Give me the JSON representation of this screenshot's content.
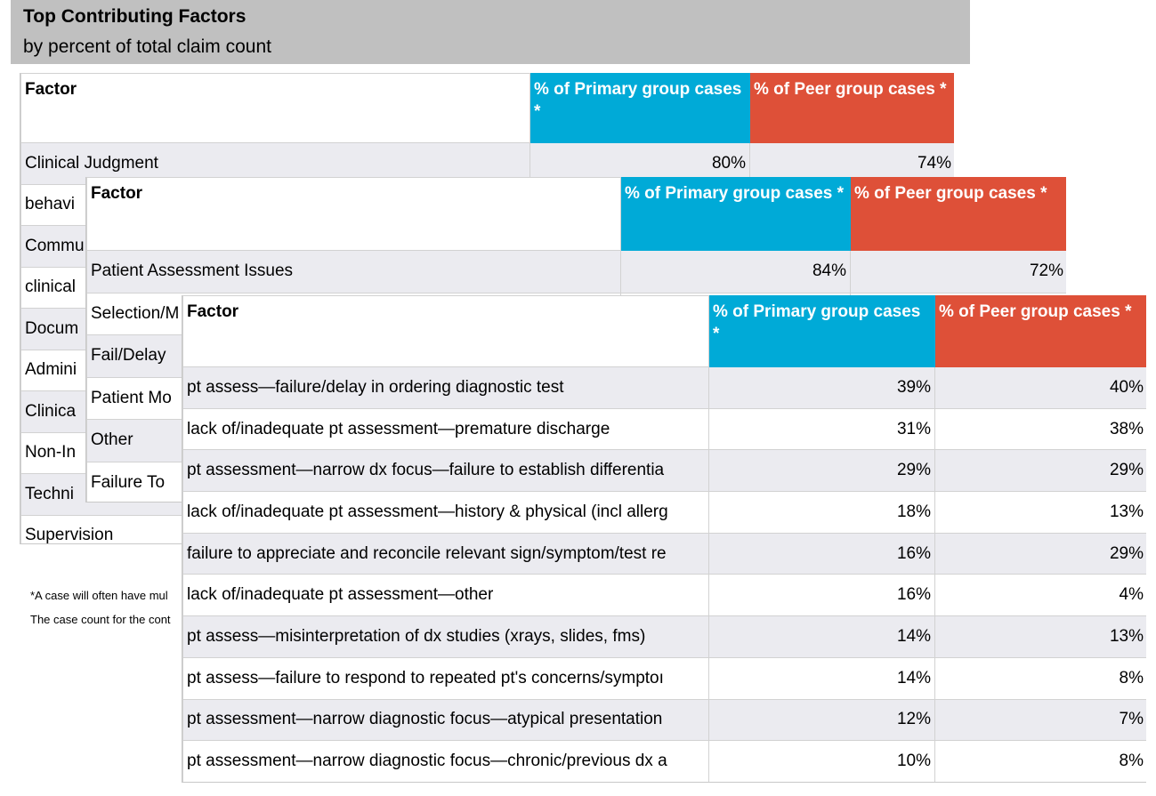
{
  "header": {
    "title": "Top Contributing Factors",
    "subtitle": "by percent of total claim count"
  },
  "columns": {
    "factor": "Factor",
    "primary": "% of Primary group cases *",
    "peer": "% of Peer group cases *"
  },
  "table1": {
    "rows": [
      {
        "factor": "Clinical Judgment",
        "primary": "80%",
        "peer": "74%"
      },
      {
        "factor": "behavi",
        "primary": "",
        "peer": ""
      },
      {
        "factor": "Commu",
        "primary": "",
        "peer": ""
      },
      {
        "factor": "clinical",
        "primary": "",
        "peer": ""
      },
      {
        "factor": "Docum",
        "primary": "",
        "peer": ""
      },
      {
        "factor": "Admini",
        "primary": "",
        "peer": ""
      },
      {
        "factor": "Clinica",
        "primary": "",
        "peer": ""
      },
      {
        "factor": "Non-In",
        "primary": "",
        "peer": ""
      },
      {
        "factor": "Techni",
        "primary": "",
        "peer": ""
      },
      {
        "factor": "Supervision",
        "primary": "",
        "peer": ""
      }
    ]
  },
  "table2": {
    "rows": [
      {
        "factor": "Patient Assessment Issues",
        "primary": "84%",
        "peer": "72%"
      },
      {
        "factor": "Selection/M",
        "primary": "",
        "peer": ""
      },
      {
        "factor": "Fail/Delay",
        "primary": "",
        "peer": ""
      },
      {
        "factor": "Patient Mo",
        "primary": "",
        "peer": ""
      },
      {
        "factor": "Other",
        "primary": "",
        "peer": ""
      },
      {
        "factor": "Failure To",
        "primary": "",
        "peer": ""
      }
    ]
  },
  "table3": {
    "rows": [
      {
        "factor": "pt assess—failure/delay in ordering diagnostic test",
        "primary": "39%",
        "peer": "40%"
      },
      {
        "factor": "lack of/inadequate pt assessment—premature discharge",
        "primary": "31%",
        "peer": "38%"
      },
      {
        "factor": "pt assessment—narrow dx focus—failure to establish differentia",
        "primary": "29%",
        "peer": "29%"
      },
      {
        "factor": "lack of/inadequate pt assessment—history & physical (incl allerg",
        "primary": "18%",
        "peer": "13%"
      },
      {
        "factor": "failure to appreciate and reconcile relevant sign/symptom/test re",
        "primary": "16%",
        "peer": "29%"
      },
      {
        "factor": "lack of/inadequate pt assessment—other",
        "primary": "16%",
        "peer": "4%"
      },
      {
        "factor": "pt assess—misinterpretation of dx studies (xrays, slides, fms)",
        "primary": "14%",
        "peer": "13%"
      },
      {
        "factor": "pt assess—failure to respond to repeated pt's concerns/symptoı",
        "primary": "14%",
        "peer": "8%"
      },
      {
        "factor": "pt assessment—narrow diagnostic focus—atypical presentation",
        "primary": "12%",
        "peer": "7%"
      },
      {
        "factor": "pt assessment—narrow diagnostic focus—chronic/previous dx a",
        "primary": "10%",
        "peer": "8%"
      }
    ]
  },
  "footnotes": {
    "line1": "*A case will often have mul",
    "line2": "The case count for the cont"
  },
  "colors": {
    "primary": "#00aad7",
    "peer": "#de5038",
    "header_bg": "#c0c0c0",
    "row_shade": "#ebebf0"
  }
}
